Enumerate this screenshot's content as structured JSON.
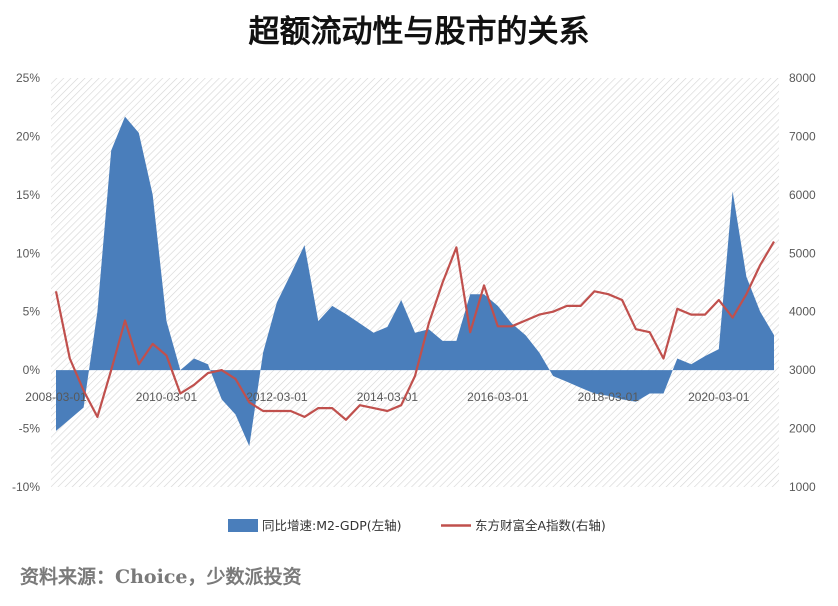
{
  "header": {
    "title": "超额流动性与股市的关系",
    "source": "资料来源：Choice，少数派投资"
  },
  "chart_data": {
    "type": "area",
    "title": "超额流动性与股市的关系",
    "x": [
      "2008-03",
      "2008-06",
      "2008-09",
      "2008-12",
      "2009-03",
      "2009-06",
      "2009-09",
      "2009-12",
      "2010-03",
      "2010-06",
      "2010-09",
      "2010-12",
      "2011-03",
      "2011-06",
      "2011-09",
      "2011-12",
      "2012-03",
      "2012-06",
      "2012-09",
      "2012-12",
      "2013-03",
      "2013-06",
      "2013-09",
      "2013-12",
      "2014-03",
      "2014-06",
      "2014-09",
      "2014-12",
      "2015-03",
      "2015-06",
      "2015-09",
      "2015-12",
      "2016-03",
      "2016-06",
      "2016-09",
      "2016-12",
      "2017-03",
      "2017-06",
      "2017-09",
      "2017-12",
      "2018-03",
      "2018-06",
      "2018-09",
      "2018-12",
      "2019-03",
      "2019-06",
      "2019-09",
      "2019-12",
      "2020-03",
      "2020-06",
      "2020-09",
      "2020-12",
      "2021-03"
    ],
    "x_tick_labels": [
      "2008-03-01",
      "2010-03-01",
      "2012-03-01",
      "2014-03-01",
      "2016-03-01",
      "2018-03-01",
      "2020-03-01"
    ],
    "x_tick_positions": [
      "2008-03",
      "2010-03",
      "2012-03",
      "2014-03",
      "2016-03",
      "2018-03",
      "2020-03"
    ],
    "y_left": {
      "lim": [
        -10,
        25
      ],
      "ticks": [
        -10,
        -5,
        0,
        5,
        10,
        15,
        20,
        25
      ],
      "tick_labels": [
        "-10%",
        "-5%",
        "0%",
        "5%",
        "10%",
        "15%",
        "20%",
        "25%"
      ]
    },
    "y_right": {
      "lim": [
        1000,
        8000
      ],
      "ticks": [
        1000,
        2000,
        3000,
        4000,
        5000,
        6000,
        7000,
        8000
      ],
      "tick_labels": [
        "1000",
        "2000",
        "3000",
        "4000",
        "5000",
        "6000",
        "7000",
        "8000"
      ]
    },
    "series": [
      {
        "name": "同比增速:M2-GDP(左轴)",
        "type": "area",
        "axis": "left",
        "color": "#4a7ebb",
        "values": [
          -5.2,
          -4.2,
          -3.2,
          5.0,
          18.8,
          21.7,
          20.3,
          15.0,
          4.2,
          0.0,
          1.0,
          0.5,
          -2.5,
          -3.8,
          -6.5,
          1.5,
          5.8,
          8.2,
          10.7,
          4.2,
          5.5,
          4.8,
          4.0,
          3.2,
          3.7,
          6.0,
          3.2,
          3.5,
          2.5,
          2.5,
          6.5,
          6.5,
          5.5,
          4.0,
          3.0,
          1.5,
          -0.5,
          -1.0,
          -1.5,
          -2.0,
          -2.2,
          -2.5,
          -2.7,
          -2.0,
          -2.0,
          1.0,
          0.5,
          1.2,
          1.8,
          15.3,
          8.0,
          5.0,
          3.0
        ]
      },
      {
        "name": "东方财富全A指数(右轴)",
        "type": "line",
        "axis": "right",
        "color": "#c0504d",
        "values": [
          4350,
          3200,
          2650,
          2200,
          3000,
          3850,
          3100,
          3450,
          3250,
          2600,
          2750,
          2950,
          3000,
          2850,
          2450,
          2300,
          2300,
          2300,
          2200,
          2350,
          2350,
          2150,
          2400,
          2350,
          2300,
          2400,
          2900,
          3800,
          4500,
          5100,
          3650,
          4450,
          3750,
          3750,
          3850,
          3950,
          4000,
          4100,
          4100,
          4350,
          4300,
          4200,
          3700,
          3650,
          3200,
          4050,
          3950,
          3950,
          4200,
          3900,
          4300,
          4800,
          5200
        ]
      }
    ],
    "grid": false,
    "legend_position": "bottom"
  }
}
